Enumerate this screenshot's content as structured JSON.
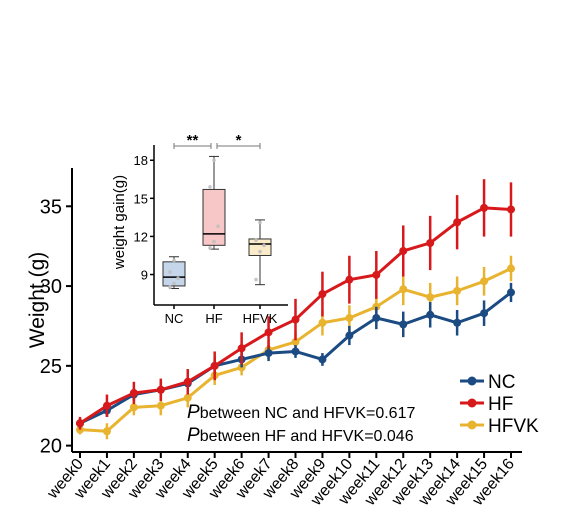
{
  "chart_data": [
    {
      "type": "line",
      "ylabel": "Weight (g)",
      "ylim": [
        19.6,
        37.4
      ],
      "yticks": [
        20,
        25,
        30,
        35
      ],
      "categories": [
        "week0",
        "week1",
        "week2",
        "week3",
        "week4",
        "week5",
        "week6",
        "week7",
        "week8",
        "week9",
        "week10",
        "week11",
        "week12",
        "week13",
        "week14",
        "week15",
        "week16"
      ],
      "series": [
        {
          "name": "NC",
          "color": "#1b4b82",
          "values": [
            21.4,
            22.2,
            23.2,
            23.5,
            23.9,
            25.0,
            25.4,
            25.8,
            25.9,
            25.4,
            26.9,
            28.0,
            27.6,
            28.2,
            27.7,
            28.3,
            29.6
          ],
          "errors": [
            0.3,
            0.4,
            0.4,
            0.5,
            0.5,
            0.5,
            0.5,
            0.5,
            0.4,
            0.4,
            0.6,
            0.7,
            0.8,
            0.8,
            0.8,
            0.8,
            0.6
          ]
        },
        {
          "name": "HF",
          "color": "#d7191c",
          "values": [
            21.4,
            22.5,
            23.3,
            23.5,
            24.0,
            25.0,
            26.1,
            27.1,
            27.9,
            29.5,
            30.4,
            30.7,
            32.2,
            32.7,
            34.0,
            34.9,
            34.8
          ],
          "errors": [
            0.4,
            0.7,
            0.7,
            0.7,
            0.8,
            0.9,
            1.0,
            1.0,
            1.3,
            1.4,
            1.5,
            1.5,
            1.6,
            1.7,
            1.7,
            1.8,
            1.7
          ]
        },
        {
          "name": "HFVK",
          "color": "#e8b430",
          "values": [
            21.0,
            20.9,
            22.4,
            22.5,
            23.0,
            24.4,
            24.9,
            26.0,
            26.5,
            27.7,
            28.0,
            28.7,
            29.8,
            29.3,
            29.7,
            30.3,
            31.1
          ],
          "errors": [
            0.3,
            0.5,
            0.5,
            0.6,
            0.6,
            0.6,
            0.5,
            0.6,
            0.6,
            0.8,
            0.8,
            0.8,
            1.0,
            0.9,
            0.9,
            0.9,
            0.8
          ]
        }
      ],
      "legend_position": "bottom-right",
      "annotations": [
        {
          "p": "P",
          "text": "between NC and HFVK=0.617"
        },
        {
          "p": "P",
          "text": "between HF and HFVK=0.046"
        }
      ]
    },
    {
      "type": "box",
      "ylabel": "weight gain(g)",
      "ylim": [
        6.6,
        19.2
      ],
      "yticks": [
        9,
        12,
        15,
        18
      ],
      "categories": [
        "NC",
        "HF",
        "HFVK"
      ],
      "boxes": [
        {
          "name": "NC",
          "fill": "#c5d6ea",
          "min": 7.9,
          "q1": 8.1,
          "median": 8.8,
          "q3": 10.0,
          "max": 10.4,
          "points": [
            8.0,
            8.3,
            8.7,
            9.2,
            10.1
          ]
        },
        {
          "name": "HF",
          "fill": "#f7c6c6",
          "min": 11.0,
          "q1": 11.3,
          "median": 12.2,
          "q3": 15.7,
          "max": 18.3,
          "points": [
            11.1,
            11.6,
            12.8,
            15.9,
            18.0
          ]
        },
        {
          "name": "HFVK",
          "fill": "#fbecc9",
          "min": 8.2,
          "q1": 10.5,
          "median": 11.4,
          "q3": 11.8,
          "max": 13.3,
          "points": [
            8.6,
            10.8,
            11.3,
            11.7,
            13.1
          ]
        }
      ],
      "significance": [
        {
          "from": "NC",
          "to": "HF",
          "label": "**"
        },
        {
          "from": "HF",
          "to": "HFVK",
          "label": "*"
        }
      ]
    }
  ]
}
